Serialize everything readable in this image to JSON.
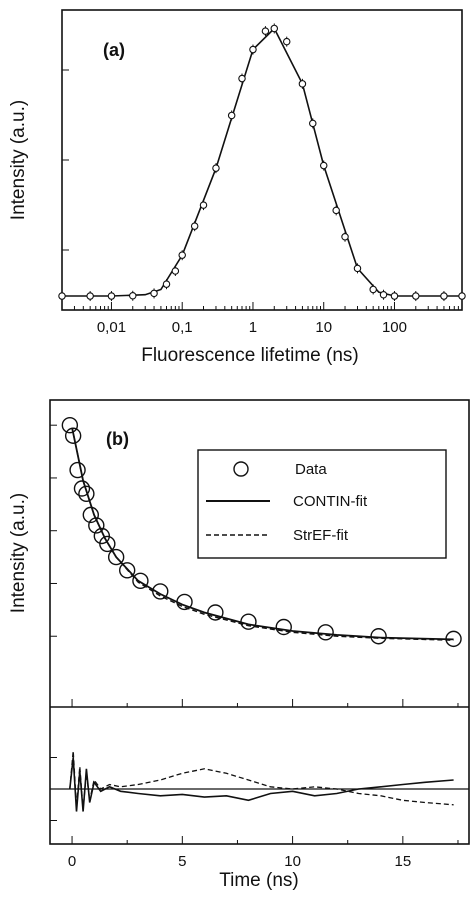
{
  "chart_data": [
    {
      "panel": "(a)",
      "type": "scatter",
      "xlabel": "Fluorescence lifetime (ns)",
      "ylabel": "Intensity (a.u.)",
      "x_scale": "log",
      "xlim": [
        0.002,
        900
      ],
      "ylim": [
        0,
        1.1
      ],
      "x_tick_labels": [
        "0,01",
        "0,1",
        "1",
        "10",
        "100"
      ],
      "x_tick_values": [
        0.01,
        0.1,
        1,
        10,
        100
      ],
      "series": [
        {
          "style": "open-circle markers with error bars",
          "x": [
            0.002,
            0.005,
            0.01,
            0.02,
            0.04,
            0.06,
            0.08,
            0.1,
            0.15,
            0.2,
            0.3,
            0.5,
            0.7,
            1,
            1.5,
            2,
            3,
            5,
            7,
            10,
            15,
            20,
            30,
            50,
            70,
            100,
            200,
            500,
            900
          ],
          "y": [
            0.015,
            0.015,
            0.015,
            0.016,
            0.025,
            0.06,
            0.11,
            0.17,
            0.28,
            0.36,
            0.5,
            0.7,
            0.84,
            0.95,
            1.02,
            1.03,
            0.98,
            0.82,
            0.67,
            0.51,
            0.34,
            0.24,
            0.12,
            0.04,
            0.02,
            0.015,
            0.015,
            0.015,
            0.015
          ]
        },
        {
          "style": "solid line fit",
          "x": [
            0.002,
            0.01,
            0.03,
            0.05,
            0.1,
            0.3,
            1,
            2,
            5,
            10,
            30,
            60,
            100,
            900
          ],
          "y": [
            0.015,
            0.015,
            0.02,
            0.04,
            0.17,
            0.5,
            0.95,
            1.03,
            0.82,
            0.51,
            0.12,
            0.03,
            0.015,
            0.015
          ]
        }
      ],
      "grid": false,
      "legend": "none"
    },
    {
      "panel": "(b)",
      "type": "line",
      "xlabel": "Time (ns)",
      "ylabel": "Intensity (a.u.)",
      "xlim": [
        -1,
        18
      ],
      "ylim": [
        0,
        1.05
      ],
      "x_tick_labels": [
        "0",
        "5",
        "10",
        "15"
      ],
      "x_tick_values": [
        0,
        5,
        10,
        15
      ],
      "legend": "top-right",
      "series": [
        {
          "name": "Data",
          "style": "open circles",
          "x": [
            -0.1,
            0.05,
            0.25,
            0.45,
            0.65,
            0.85,
            1.1,
            1.35,
            1.6,
            2.0,
            2.5,
            3.1,
            4.0,
            5.1,
            6.5,
            8.0,
            9.6,
            11.5,
            13.9,
            17.3
          ],
          "y": [
            1.0,
            0.96,
            0.83,
            0.76,
            0.74,
            0.66,
            0.62,
            0.58,
            0.55,
            0.5,
            0.45,
            0.41,
            0.37,
            0.33,
            0.29,
            0.255,
            0.235,
            0.215,
            0.2,
            0.19
          ]
        },
        {
          "name": "CONTIN-fit",
          "style": "solid line",
          "x": [
            0,
            0.5,
            1,
            1.5,
            2,
            3,
            4,
            5,
            6,
            8,
            10,
            12,
            14,
            17.3
          ],
          "y": [
            0.99,
            0.79,
            0.66,
            0.57,
            0.5,
            0.41,
            0.36,
            0.32,
            0.29,
            0.245,
            0.22,
            0.205,
            0.195,
            0.188
          ]
        },
        {
          "name": "StrEF-fit",
          "style": "dashed line",
          "x": [
            0,
            0.5,
            1,
            1.5,
            2,
            3,
            4,
            5,
            6,
            8,
            10,
            12,
            14,
            17.3
          ],
          "y": [
            0.99,
            0.79,
            0.66,
            0.57,
            0.5,
            0.405,
            0.353,
            0.313,
            0.283,
            0.24,
            0.215,
            0.2,
            0.192,
            0.185
          ]
        }
      ],
      "residuals": {
        "ylim": [
          -1,
          1
        ],
        "series": [
          {
            "name": "CONTIN-fit",
            "style": "solid line",
            "x": [
              -0.1,
              0.05,
              0.2,
              0.35,
              0.5,
              0.65,
              0.8,
              1.0,
              1.3,
              1.7,
              2.2,
              3,
              4,
              5,
              6,
              7,
              8,
              9,
              10,
              11,
              12,
              13,
              14,
              15,
              16,
              17.3
            ],
            "y": [
              0.0,
              0.7,
              -0.5,
              0.4,
              -0.5,
              0.45,
              -0.3,
              0.15,
              -0.05,
              0.05,
              -0.05,
              -0.1,
              -0.15,
              -0.12,
              -0.18,
              -0.15,
              -0.25,
              -0.1,
              -0.05,
              -0.15,
              -0.1,
              0.0,
              0.05,
              0.1,
              0.15,
              0.2
            ]
          },
          {
            "name": "StrEF-fit",
            "style": "dashed line",
            "x": [
              -0.1,
              0.05,
              0.2,
              0.35,
              0.5,
              0.65,
              0.8,
              1.0,
              1.3,
              1.7,
              2.2,
              3,
              4,
              5,
              6,
              7,
              8,
              9,
              10,
              11,
              12,
              13,
              14,
              15,
              16,
              17.3
            ],
            "y": [
              0.0,
              0.85,
              -0.4,
              0.5,
              -0.45,
              0.35,
              -0.25,
              0.2,
              0.0,
              0.1,
              0.05,
              0.1,
              0.2,
              0.35,
              0.45,
              0.35,
              0.2,
              0.05,
              0.0,
              0.05,
              0.0,
              -0.1,
              -0.15,
              -0.25,
              -0.3,
              -0.35
            ]
          }
        ]
      }
    }
  ]
}
